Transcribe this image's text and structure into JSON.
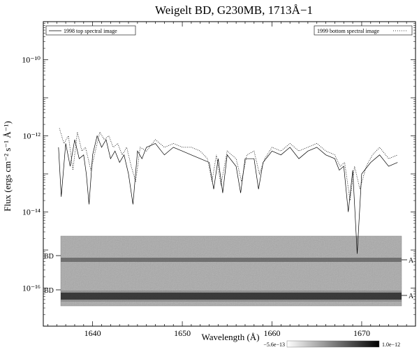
{
  "chart_data": {
    "type": "line",
    "title": "Weigelt BD, G230MB, 1713Å−1",
    "xlabel": "Wavelength (Å)",
    "ylabel": "Flux (ergs cm⁻² s⁻¹ Å⁻¹)",
    "y_scale": "log",
    "xlim": [
      1634.5,
      1676.0
    ],
    "ylim_log10": [
      -17.0,
      -9.0
    ],
    "x_ticks": [
      1640,
      1650,
      1660,
      1670
    ],
    "y_ticks": [
      {
        "exp": -10,
        "label": "10⁻¹⁰"
      },
      {
        "exp": -12,
        "label": "10⁻¹²"
      },
      {
        "exp": -14,
        "label": "10⁻¹⁴"
      },
      {
        "exp": -16,
        "label": "10⁻¹⁶"
      }
    ],
    "legend": {
      "left": "1998 top spectral image",
      "right": "1999 bottom spectral image"
    },
    "series": [
      {
        "name": "1998 top spectral image",
        "style": "solid",
        "x": [
          1636.2,
          1636.5,
          1637.0,
          1637.5,
          1638.0,
          1638.5,
          1639.0,
          1639.3,
          1639.6,
          1640.0,
          1640.5,
          1641.0,
          1641.5,
          1642.0,
          1642.5,
          1643.0,
          1643.5,
          1644.0,
          1644.5,
          1645.0,
          1645.5,
          1646.0,
          1647.0,
          1648.0,
          1649.0,
          1650.0,
          1651.0,
          1652.0,
          1653.0,
          1653.5,
          1654.0,
          1654.5,
          1655.0,
          1656.0,
          1656.5,
          1657.0,
          1658.0,
          1658.5,
          1659.0,
          1660.0,
          1661.0,
          1662.0,
          1663.0,
          1664.0,
          1665.0,
          1666.0,
          1667.0,
          1667.5,
          1668.0,
          1668.5,
          1669.0,
          1669.5,
          1670.0,
          1671.0,
          1672.0,
          1673.0,
          1674.0
        ],
        "y_log10": [
          -12.3,
          -13.6,
          -12.2,
          -12.8,
          -12.1,
          -12.6,
          -12.5,
          -13.0,
          -13.8,
          -12.5,
          -12.0,
          -12.3,
          -12.1,
          -12.6,
          -12.4,
          -12.7,
          -12.5,
          -13.0,
          -13.8,
          -12.4,
          -12.6,
          -12.3,
          -12.2,
          -12.5,
          -12.3,
          -12.4,
          -12.5,
          -12.6,
          -12.7,
          -13.4,
          -12.6,
          -13.5,
          -12.5,
          -12.8,
          -13.5,
          -12.6,
          -12.6,
          -13.4,
          -12.7,
          -12.4,
          -12.5,
          -12.3,
          -12.6,
          -12.4,
          -12.3,
          -12.5,
          -12.6,
          -12.9,
          -12.8,
          -14.0,
          -12.9,
          -15.1,
          -13.0,
          -12.7,
          -12.5,
          -12.8,
          -12.7
        ]
      },
      {
        "name": "1999 bottom spectral image",
        "style": "dotted",
        "x": [
          1636.3,
          1636.8,
          1637.3,
          1637.8,
          1638.3,
          1638.8,
          1639.2,
          1639.8,
          1640.3,
          1640.8,
          1641.3,
          1641.8,
          1642.3,
          1642.8,
          1643.3,
          1643.8,
          1644.3,
          1644.8,
          1645.3,
          1646.0,
          1647.0,
          1648.0,
          1649.0,
          1650.0,
          1651.0,
          1652.0,
          1652.8,
          1653.3,
          1653.8,
          1654.3,
          1655.0,
          1656.0,
          1656.6,
          1657.2,
          1658.0,
          1658.6,
          1659.2,
          1660.0,
          1661.0,
          1662.0,
          1663.0,
          1664.0,
          1665.0,
          1666.0,
          1667.0,
          1667.6,
          1668.1,
          1668.7,
          1669.2,
          1669.8,
          1670.5,
          1671.2,
          1672.0,
          1673.0,
          1674.0
        ],
        "y_log10": [
          -11.8,
          -12.2,
          -12.0,
          -12.9,
          -11.9,
          -12.4,
          -12.3,
          -12.9,
          -12.4,
          -11.9,
          -12.1,
          -12.0,
          -12.3,
          -12.2,
          -12.5,
          -12.3,
          -12.8,
          -13.2,
          -12.3,
          -12.4,
          -12.1,
          -12.3,
          -12.2,
          -12.3,
          -12.3,
          -12.4,
          -12.6,
          -13.2,
          -12.5,
          -13.3,
          -12.4,
          -12.6,
          -13.2,
          -12.5,
          -12.4,
          -13.0,
          -12.6,
          -12.3,
          -12.4,
          -12.2,
          -12.4,
          -12.3,
          -12.2,
          -12.4,
          -12.5,
          -12.8,
          -12.7,
          -13.7,
          -12.8,
          -13.4,
          -12.8,
          -12.5,
          -12.3,
          -12.6,
          -12.5
        ]
      }
    ],
    "inset_image": {
      "left_labels": [
        "BD",
        "BD"
      ],
      "right_labels": [
        "A",
        "A"
      ],
      "colorbar": {
        "min_label": "−5.6e−13",
        "max_label": "1.0e−12"
      }
    }
  }
}
